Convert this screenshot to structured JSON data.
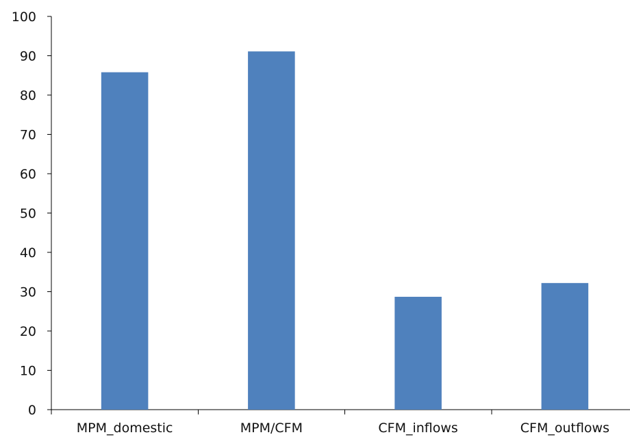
{
  "chart_data": {
    "type": "bar",
    "title": "",
    "xlabel": "",
    "ylabel": "",
    "categories": [
      "MPM_domestic",
      "MPM/CFM",
      "CFM_inflows",
      "CFM_outflows"
    ],
    "values": [
      85.8,
      91.1,
      28.7,
      32.2
    ],
    "ylim": [
      0,
      100
    ],
    "yticks": [
      "0",
      "10",
      "20",
      "30",
      "40",
      "50",
      "60",
      "70",
      "80",
      "90",
      "100"
    ],
    "bar_color": "#4f81bd",
    "grid": false,
    "legend": "none"
  }
}
